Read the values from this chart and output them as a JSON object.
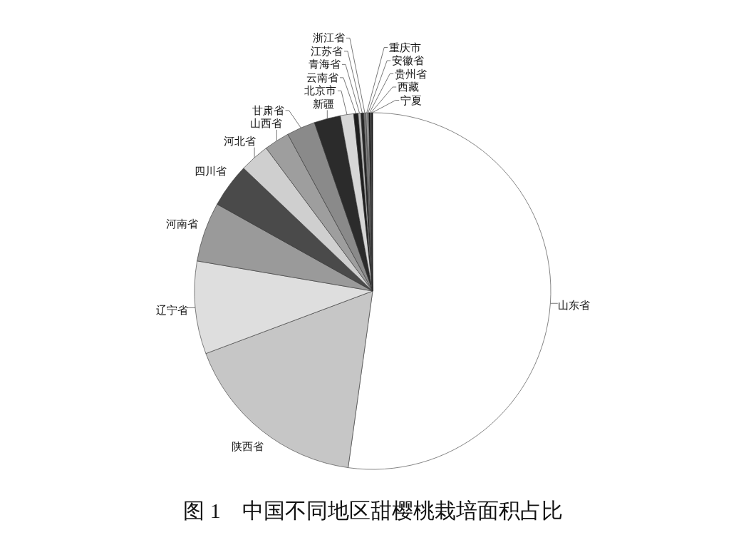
{
  "chart_data": {
    "type": "pie",
    "title": "图 1　中国不同地区甜樱桃栽培面积占比",
    "categories": [
      "山东省",
      "陕西省",
      "辽宁省",
      "河南省",
      "四川省",
      "河北省",
      "山西省",
      "甘肃省",
      "新疆",
      "北京市",
      "云南省",
      "青海省",
      "江苏省",
      "浙江省",
      "重庆市",
      "安徽省",
      "贵州省",
      "西藏",
      "宁夏"
    ],
    "values": [
      52.2,
      17.1,
      8.4,
      5.4,
      4.0,
      2.7,
      2.3,
      2.6,
      2.4,
      1.2,
      0.4,
      0.25,
      0.25,
      0.2,
      0.15,
      0.1,
      0.15,
      0.1,
      0.1
    ],
    "colors": [
      "#ffffff",
      "#c6c6c6",
      "#dedede",
      "#9a9a9a",
      "#4a4a4a",
      "#cfcfcf",
      "#9e9e9e",
      "#8a8a8a",
      "#2b2b2b",
      "#d6d6d6",
      "#1e1e1e",
      "#bbbbbb",
      "#262626",
      "#7f7f7f",
      "#a8a8a8",
      "#e0e0e0",
      "#141414",
      "#6e6e6e",
      "#000000"
    ]
  }
}
